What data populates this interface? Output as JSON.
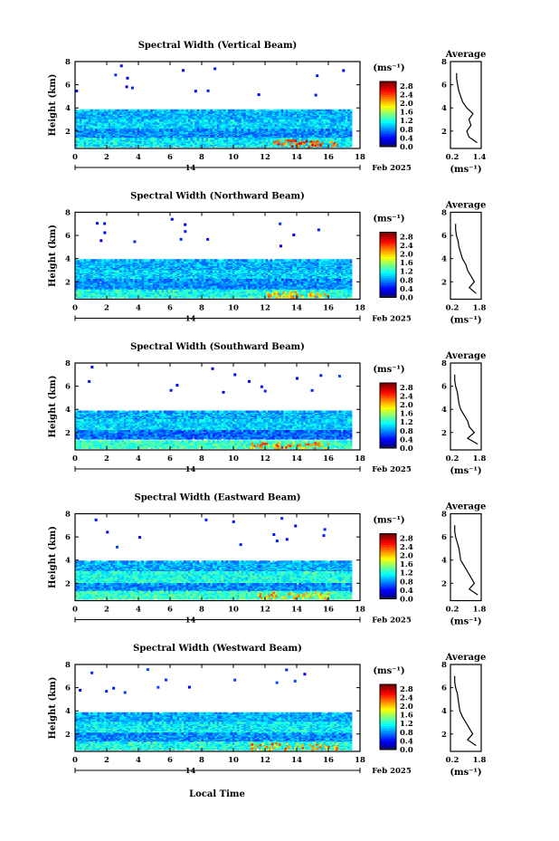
{
  "figure": {
    "x_axis_label": "Local Time",
    "date_label": "Feb 2025",
    "day_label": "14",
    "time_ticks": [
      "0",
      "2",
      "4",
      "6",
      "8",
      "10",
      "12",
      "14",
      "16",
      "18"
    ],
    "height_ticks": [
      "2",
      "4",
      "6",
      "8"
    ],
    "colorbar_unit": "(ms⁻¹)",
    "avg_title": "Average",
    "avg_unit": "(ms⁻¹)",
    "y_axis_label": "Height (km)"
  },
  "chart_data": [
    {
      "type": "heatmap",
      "title": "Spectral Width (Vertical Beam)",
      "xlabel": "",
      "ylabel": "Height (km)",
      "xlim": [
        0,
        18
      ],
      "ylim": [
        0.5,
        8
      ],
      "colorbar": {
        "ticks": [
          "0.0",
          "0.4",
          "0.8",
          "1.2",
          "1.6",
          "2.0",
          "2.4",
          "2.8"
        ],
        "range": [
          0.0,
          3.0
        ]
      },
      "bands": [
        {
          "y": [
            3.0,
            3.85
          ],
          "x": [
            0,
            17.4
          ],
          "value": 0.9
        },
        {
          "y": [
            2.2,
            3.0
          ],
          "x": [
            0,
            17.4
          ],
          "value": 1.0
        },
        {
          "y": [
            1.4,
            2.2
          ],
          "x": [
            0,
            17.4
          ],
          "value": 0.8
        },
        {
          "y": [
            0.7,
            1.4
          ],
          "x": [
            0,
            17.4
          ],
          "value": 1.1
        }
      ],
      "hotspots": [
        {
          "x": [
            12.5,
            16.5
          ],
          "y": [
            0.7,
            1.3
          ],
          "value": 2.4
        }
      ],
      "average_profile": {
        "xlim": [
          0.0,
          1.5
        ],
        "xticks": [
          "0.2",
          "1.4"
        ],
        "height": [
          1.0,
          1.5,
          2.0,
          2.5,
          3.0,
          3.5,
          4.0,
          4.5,
          5.0,
          5.5,
          6.0,
          6.5,
          7.0
        ],
        "value": [
          1.3,
          0.9,
          0.8,
          1.0,
          0.9,
          1.1,
          0.8,
          0.6,
          0.5,
          0.4,
          0.35,
          0.3,
          0.3
        ]
      }
    },
    {
      "type": "heatmap",
      "title": "Spectral Width (Northward Beam)",
      "xlabel": "",
      "ylabel": "Height (km)",
      "xlim": [
        0,
        18
      ],
      "ylim": [
        0.5,
        8
      ],
      "colorbar": {
        "ticks": [
          "0.0",
          "0.4",
          "0.8",
          "1.2",
          "1.6",
          "2.0",
          "2.4",
          "2.8"
        ],
        "range": [
          0.0,
          3.0
        ]
      },
      "bands": [
        {
          "y": [
            3.0,
            3.9
          ],
          "x": [
            0,
            17.4
          ],
          "value": 0.9
        },
        {
          "y": [
            2.2,
            3.0
          ],
          "x": [
            0,
            17.4
          ],
          "value": 1.0
        },
        {
          "y": [
            1.3,
            2.2
          ],
          "x": [
            0,
            17.4
          ],
          "value": 0.8
        },
        {
          "y": [
            0.7,
            1.3
          ],
          "x": [
            0,
            17.4
          ],
          "value": 1.2
        }
      ],
      "hotspots": [
        {
          "x": [
            12.0,
            16.0
          ],
          "y": [
            0.7,
            1.2
          ],
          "value": 2.0
        }
      ],
      "average_profile": {
        "xlim": [
          0.0,
          1.8
        ],
        "xticks": [
          "0.2",
          "1.8"
        ],
        "height": [
          1.0,
          1.5,
          2.0,
          2.5,
          3.0,
          3.5,
          4.0,
          4.5,
          5.0,
          5.5,
          6.0,
          6.5,
          7.0
        ],
        "value": [
          1.5,
          1.1,
          1.4,
          1.2,
          1.0,
          0.9,
          0.7,
          0.6,
          0.5,
          0.45,
          0.35,
          0.3,
          0.3
        ]
      }
    },
    {
      "type": "heatmap",
      "title": "Spectral Width (Southward Beam)",
      "xlabel": "",
      "ylabel": "Height (km)",
      "xlim": [
        0,
        18
      ],
      "ylim": [
        0.5,
        8
      ],
      "colorbar": {
        "ticks": [
          "0.0",
          "0.4",
          "0.8",
          "1.2",
          "1.6",
          "2.0",
          "2.4",
          "2.8"
        ],
        "range": [
          0.0,
          3.0
        ]
      },
      "bands": [
        {
          "y": [
            3.1,
            3.85
          ],
          "x": [
            0,
            17.4
          ],
          "value": 0.9
        },
        {
          "y": [
            2.2,
            3.1
          ],
          "x": [
            0,
            17.4
          ],
          "value": 1.0
        },
        {
          "y": [
            1.5,
            2.2
          ],
          "x": [
            0,
            17.4
          ],
          "value": 0.7
        },
        {
          "y": [
            0.7,
            1.3
          ],
          "x": [
            0,
            17.4
          ],
          "value": 1.3
        }
      ],
      "hotspots": [
        {
          "x": [
            11.0,
            16.0
          ],
          "y": [
            0.7,
            1.2
          ],
          "value": 2.2
        }
      ],
      "average_profile": {
        "xlim": [
          0.0,
          1.8
        ],
        "xticks": [
          "0.2",
          "1.8"
        ],
        "height": [
          1.0,
          1.5,
          2.0,
          2.5,
          3.0,
          3.5,
          4.0,
          4.5,
          5.0,
          5.5,
          6.0,
          6.5,
          7.0
        ],
        "value": [
          1.6,
          1.0,
          1.4,
          1.1,
          1.0,
          0.8,
          0.6,
          0.5,
          0.45,
          0.4,
          0.3,
          0.25,
          0.25
        ]
      }
    },
    {
      "type": "heatmap",
      "title": "Spectral Width (Eastward Beam)",
      "xlabel": "",
      "ylabel": "Height (km)",
      "xlim": [
        0,
        18
      ],
      "ylim": [
        0.5,
        8
      ],
      "colorbar": {
        "ticks": [
          "0.0",
          "0.4",
          "0.8",
          "1.2",
          "1.6",
          "2.0",
          "2.4",
          "2.8"
        ],
        "range": [
          0.0,
          3.0
        ]
      },
      "bands": [
        {
          "y": [
            3.0,
            3.9
          ],
          "x": [
            0,
            17.4
          ],
          "value": 0.9
        },
        {
          "y": [
            2.0,
            3.0
          ],
          "x": [
            0,
            17.4
          ],
          "value": 1.2
        },
        {
          "y": [
            1.3,
            2.0
          ],
          "x": [
            0,
            17.4
          ],
          "value": 0.8
        },
        {
          "y": [
            0.7,
            1.3
          ],
          "x": [
            0,
            17.4
          ],
          "value": 1.3
        }
      ],
      "hotspots": [
        {
          "x": [
            11.5,
            16.0
          ],
          "y": [
            0.7,
            1.3
          ],
          "value": 2.0
        }
      ],
      "average_profile": {
        "xlim": [
          0.0,
          1.8
        ],
        "xticks": [
          "0.2",
          "1.8"
        ],
        "height": [
          1.0,
          1.5,
          2.0,
          2.5,
          3.0,
          3.5,
          4.0,
          4.5,
          5.0,
          5.5,
          6.0,
          6.5,
          7.0
        ],
        "value": [
          1.6,
          1.1,
          1.4,
          1.2,
          1.0,
          0.8,
          0.6,
          0.55,
          0.5,
          0.4,
          0.3,
          0.25,
          0.25
        ]
      }
    },
    {
      "type": "heatmap",
      "title": "Spectral Width (Westward Beam)",
      "xlabel": "Local Time",
      "ylabel": "Height (km)",
      "xlim": [
        0,
        18
      ],
      "ylim": [
        0.5,
        8
      ],
      "colorbar": {
        "ticks": [
          "0.0",
          "0.4",
          "0.8",
          "1.2",
          "1.6",
          "2.0",
          "2.4",
          "2.8"
        ],
        "range": [
          0.0,
          3.0
        ]
      },
      "bands": [
        {
          "y": [
            3.0,
            3.85
          ],
          "x": [
            0,
            17.4
          ],
          "value": 0.9
        },
        {
          "y": [
            2.1,
            3.0
          ],
          "x": [
            0,
            17.4
          ],
          "value": 1.1
        },
        {
          "y": [
            1.4,
            2.1
          ],
          "x": [
            0,
            17.4
          ],
          "value": 0.8
        },
        {
          "y": [
            0.7,
            1.3
          ],
          "x": [
            0,
            17.4
          ],
          "value": 1.2
        }
      ],
      "hotspots": [
        {
          "x": [
            11.0,
            16.5
          ],
          "y": [
            0.7,
            1.3
          ],
          "value": 2.1
        }
      ],
      "average_profile": {
        "xlim": [
          0.0,
          1.8
        ],
        "xticks": [
          "0.2",
          "1.8"
        ],
        "height": [
          1.0,
          1.5,
          2.0,
          2.5,
          3.0,
          3.5,
          4.0,
          4.5,
          5.0,
          5.5,
          6.0,
          6.5,
          7.0
        ],
        "value": [
          1.5,
          1.0,
          1.3,
          1.1,
          0.9,
          0.7,
          0.55,
          0.5,
          0.45,
          0.4,
          0.3,
          0.25,
          0.25
        ]
      }
    }
  ]
}
